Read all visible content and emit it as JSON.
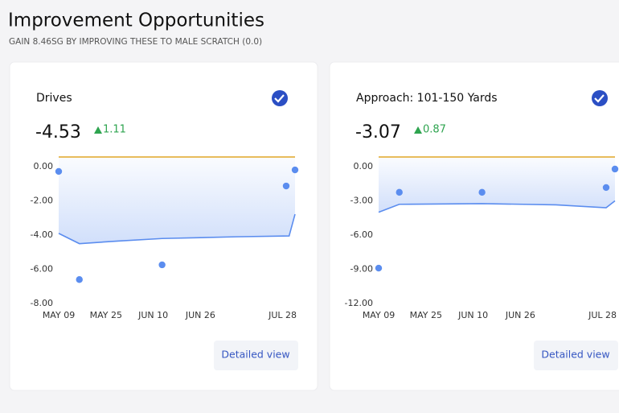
{
  "header": {
    "title": "Improvement Opportunities",
    "subtitle": "GAIN 8.46SG BY IMPROVING THESE TO MALE SCRATCH (0.0)"
  },
  "cards": [
    {
      "title": "Drives",
      "value": "-4.53",
      "delta": "1.11",
      "button": "Detailed view"
    },
    {
      "title": "Approach: 101-150 Yards",
      "value": "-3.07",
      "delta": "0.87",
      "button": "Detailed view"
    }
  ],
  "chart_data": [
    {
      "type": "line",
      "xlim": [
        0,
        80
      ],
      "ylim": [
        -8,
        0
      ],
      "yticks": [
        {
          "value": 0,
          "label": "0.00"
        },
        {
          "value": -2,
          "label": "-2.00"
        },
        {
          "value": -4,
          "label": "-4.00"
        },
        {
          "value": -6,
          "label": "-6.00"
        },
        {
          "value": -8,
          "label": "-8.00"
        }
      ],
      "xticks": [
        {
          "value": 0,
          "label": "MAY 09"
        },
        {
          "value": 16,
          "label": "MAY 25"
        },
        {
          "value": 32,
          "label": "JUN 10"
        },
        {
          "value": 48,
          "label": "JUN 26"
        },
        {
          "value": 80,
          "label": "JUL 28"
        }
      ],
      "series": [
        {
          "type": "area",
          "color": "#5b8def",
          "x": [
            0,
            7,
            20,
            35,
            60,
            78,
            80
          ],
          "values": [
            -3.9,
            -4.5,
            -4.35,
            -4.2,
            -4.1,
            -4.05,
            -2.78
          ]
        },
        {
          "type": "scatter",
          "color": "#5b8def",
          "x": [
            0,
            7,
            35,
            77,
            80
          ],
          "values": [
            -0.28,
            -6.6,
            -5.74,
            -1.13,
            -0.19
          ]
        }
      ]
    },
    {
      "type": "line",
      "xlim": [
        0,
        80
      ],
      "ylim": [
        -12,
        0
      ],
      "yticks": [
        {
          "value": 0,
          "label": "0.00"
        },
        {
          "value": -3,
          "label": "-3.00"
        },
        {
          "value": -6,
          "label": "-6.00"
        },
        {
          "value": -9,
          "label": "-9.00"
        },
        {
          "value": -12,
          "label": "-12.00"
        }
      ],
      "xticks": [
        {
          "value": 0,
          "label": "MAY 09"
        },
        {
          "value": 16,
          "label": "MAY 25"
        },
        {
          "value": 32,
          "label": "JUN 10"
        },
        {
          "value": 48,
          "label": "JUN 26"
        },
        {
          "value": 80,
          "label": "JUL 28"
        }
      ],
      "series": [
        {
          "type": "area",
          "color": "#5b8def",
          "x": [
            0,
            7,
            35,
            60,
            77,
            80
          ],
          "values": [
            -4.0,
            -3.3,
            -3.24,
            -3.35,
            -3.6,
            -3.0
          ]
        },
        {
          "type": "scatter",
          "color": "#5b8def",
          "x": [
            0,
            7,
            35,
            77,
            80
          ],
          "values": [
            -8.9,
            -2.25,
            -2.25,
            -1.83,
            -0.21
          ]
        }
      ]
    }
  ]
}
